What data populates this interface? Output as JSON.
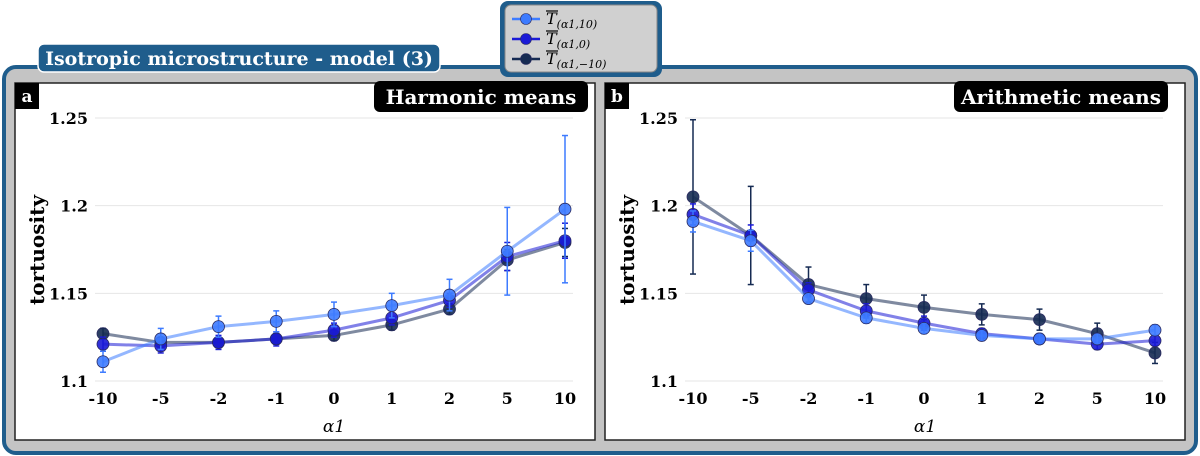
{
  "figure": {
    "title": "Isotropic microstructure - model (3)",
    "legend_placement": "top-center",
    "colors": {
      "frame": "#1f5d8c",
      "panel_bg": "#c4c4c4",
      "title_bg": "#1f5d8c",
      "label_bg": "#000000",
      "grid": "#e6e6e6"
    }
  },
  "chart_data": [
    {
      "type": "line",
      "panel": "a",
      "title": "Harmonic means",
      "xlabel": "α1",
      "ylabel": "tortuosity",
      "categories": [
        "-10",
        "-5",
        "-2",
        "-1",
        "0",
        "1",
        "2",
        "5",
        "10"
      ],
      "ylim": [
        1.1,
        1.25
      ],
      "yticks": [
        1.1,
        1.15,
        1.2,
        1.25
      ],
      "ytick_labels": [
        "1.1",
        "1.15",
        "1.2",
        "1.25"
      ],
      "grid": true,
      "series": [
        {
          "name": "T(α1,10)",
          "legend_main": "T",
          "legend_sub": "(α1,10)",
          "color": "#3d7bff",
          "values": [
            1.111,
            1.124,
            1.131,
            1.134,
            1.138,
            1.143,
            1.149,
            1.174,
            1.198
          ],
          "errors": [
            0.006,
            0.006,
            0.006,
            0.006,
            0.007,
            0.007,
            0.009,
            0.025,
            0.042
          ]
        },
        {
          "name": "T(α1,0)",
          "legend_main": "T",
          "legend_sub": "(α1,0)",
          "color": "#1a1ad6",
          "values": [
            1.121,
            1.12,
            1.122,
            1.124,
            1.129,
            1.136,
            1.146,
            1.171,
            1.18
          ],
          "errors": [
            0.004,
            0.004,
            0.004,
            0.004,
            0.004,
            0.004,
            0.004,
            0.008,
            0.01
          ]
        },
        {
          "name": "T(α1,-10)",
          "legend_main": "T",
          "legend_sub": "(α1,−10)",
          "color": "#152a52",
          "values": [
            1.127,
            1.122,
            1.122,
            1.124,
            1.126,
            1.132,
            1.141,
            1.169,
            1.179
          ],
          "errors": [
            0.003,
            0.003,
            0.003,
            0.003,
            0.003,
            0.003,
            0.003,
            0.006,
            0.008
          ]
        }
      ]
    },
    {
      "type": "line",
      "panel": "b",
      "title": "Arithmetic means",
      "xlabel": "α1",
      "ylabel": "tortuosity",
      "categories": [
        "-10",
        "-5",
        "-2",
        "-1",
        "0",
        "1",
        "2",
        "5",
        "10"
      ],
      "ylim": [
        1.1,
        1.25
      ],
      "yticks": [
        1.1,
        1.15,
        1.2,
        1.25
      ],
      "ytick_labels": [
        "1.1",
        "1.15",
        "1.2",
        "1.25"
      ],
      "grid": true,
      "series": [
        {
          "name": "T(α1,10)",
          "color": "#3d7bff",
          "values": [
            1.191,
            1.18,
            1.147,
            1.136,
            1.13,
            1.126,
            1.124,
            1.124,
            1.129
          ],
          "errors": [
            0.006,
            0.006,
            0.003,
            0.003,
            0.003,
            0.003,
            0.003,
            0.003,
            0.003
          ]
        },
        {
          "name": "T(α1,0)",
          "color": "#1a1ad6",
          "values": [
            1.195,
            1.183,
            1.152,
            1.14,
            1.133,
            1.127,
            1.124,
            1.121,
            1.123
          ],
          "errors": [
            0.006,
            0.006,
            0.004,
            0.004,
            0.004,
            0.003,
            0.003,
            0.003,
            0.003
          ]
        },
        {
          "name": "T(α1,-10)",
          "color": "#152a52",
          "values": [
            1.205,
            1.183,
            1.155,
            1.147,
            1.142,
            1.138,
            1.135,
            1.127,
            1.116
          ],
          "errors": [
            0.044,
            0.028,
            0.01,
            0.008,
            0.007,
            0.006,
            0.006,
            0.006,
            0.006
          ]
        }
      ]
    }
  ]
}
